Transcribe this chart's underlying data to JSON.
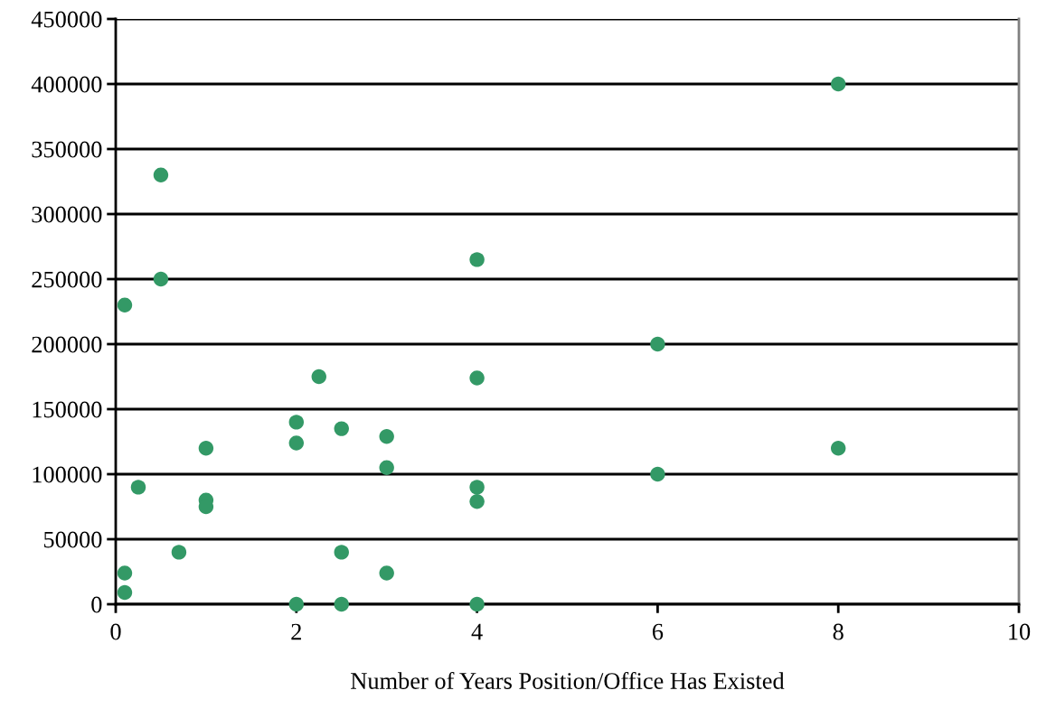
{
  "chart_data": {
    "type": "scatter",
    "xlabel": "Number of Years Position/Office Has Existed",
    "x": [
      0.5,
      0.5,
      0.1,
      2.25,
      2,
      2,
      2.5,
      1,
      0.25,
      1,
      1,
      0.7,
      2.5,
      0.1,
      0.1,
      2,
      2.5,
      4,
      4,
      3,
      3,
      4,
      4,
      3,
      4,
      8,
      6,
      6,
      8
    ],
    "values": [
      330000,
      250000,
      230000,
      175000,
      140000,
      124000,
      135000,
      120000,
      90000,
      80000,
      75000,
      40000,
      40000,
      24000,
      9000,
      0,
      0,
      265000,
      174000,
      129000,
      105000,
      90000,
      79000,
      24000,
      0,
      400000,
      200000,
      100000,
      120000
    ],
    "color": "#339966",
    "marker": "circle",
    "xlim": [
      0,
      10
    ],
    "xticks": [
      0,
      2,
      4,
      6,
      8,
      10
    ],
    "ylim": [
      0,
      450000
    ],
    "yticks": [
      0,
      50000,
      100000,
      150000,
      200000,
      250000,
      300000,
      350000,
      400000,
      450000
    ],
    "grid": "y",
    "legend": false
  }
}
